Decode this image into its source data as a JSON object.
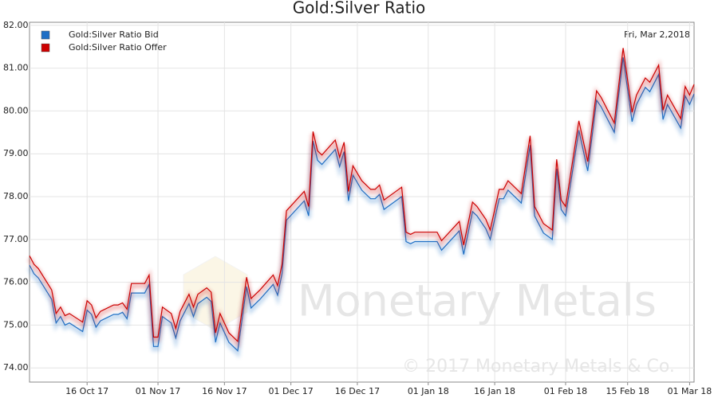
{
  "chart_data": {
    "type": "line",
    "title": "Gold:Silver Ratio",
    "date_label": "Fri, Mar 2,2018",
    "watermark": "Monetary Metals",
    "copyright": "© 2017 Monetary Metals & Co.",
    "x": [
      "2017-10-03",
      "2017-10-04",
      "2017-10-05",
      "2017-10-08",
      "2017-10-09",
      "2017-10-10",
      "2017-10-11",
      "2017-10-12",
      "2017-10-15",
      "2017-10-16",
      "2017-10-17",
      "2017-10-18",
      "2017-10-19",
      "2017-10-22",
      "2017-10-23",
      "2017-10-24",
      "2017-10-25",
      "2017-10-26",
      "2017-10-29",
      "2017-10-30",
      "2017-10-31",
      "2017-11-01",
      "2017-11-02",
      "2017-11-04",
      "2017-11-05",
      "2017-11-06",
      "2017-11-08",
      "2017-11-09",
      "2017-11-10",
      "2017-11-12",
      "2017-11-13",
      "2017-11-14",
      "2017-11-15",
      "2017-11-17",
      "2017-11-19",
      "2017-11-21",
      "2017-11-22",
      "2017-11-24",
      "2017-11-27",
      "2017-11-28",
      "2017-11-29",
      "2017-11-30",
      "2017-12-04",
      "2017-12-05",
      "2017-12-06",
      "2017-12-07",
      "2017-12-08",
      "2017-12-11",
      "2017-12-12",
      "2017-12-13",
      "2017-12-14",
      "2017-12-15",
      "2017-12-17",
      "2017-12-19",
      "2017-12-20",
      "2017-12-21",
      "2017-12-22",
      "2017-12-26",
      "2017-12-27",
      "2017-12-28",
      "2017-12-29",
      "2018-01-03",
      "2018-01-04",
      "2018-01-08",
      "2018-01-09",
      "2018-01-11",
      "2018-01-12",
      "2018-01-14",
      "2018-01-15",
      "2018-01-17",
      "2018-01-18",
      "2018-01-19",
      "2018-01-22",
      "2018-01-24",
      "2018-01-25",
      "2018-01-27",
      "2018-01-29",
      "2018-01-30",
      "2018-01-31",
      "2018-02-01",
      "2018-02-04",
      "2018-02-06",
      "2018-02-08",
      "2018-02-09",
      "2018-02-12",
      "2018-02-14",
      "2018-02-16",
      "2018-02-17",
      "2018-02-19",
      "2018-02-20",
      "2018-02-22",
      "2018-02-23",
      "2018-02-24",
      "2018-02-27",
      "2018-02-28",
      "2018-03-01",
      "2018-03-02"
    ],
    "series": [
      {
        "name": "Gold:Silver Ratio Bid",
        "color": "#1f6fc5",
        "values": [
          76.4,
          76.2,
          76.1,
          75.6,
          75.05,
          75.2,
          75.0,
          75.05,
          74.85,
          75.35,
          75.25,
          74.95,
          75.1,
          75.25,
          75.25,
          75.3,
          75.15,
          75.75,
          75.75,
          75.95,
          74.5,
          74.5,
          75.2,
          75.05,
          74.7,
          75.1,
          75.5,
          75.2,
          75.5,
          75.65,
          75.55,
          74.6,
          75.05,
          74.6,
          74.4,
          75.9,
          75.4,
          75.6,
          75.95,
          75.7,
          76.2,
          77.45,
          77.9,
          77.55,
          79.3,
          78.85,
          78.75,
          79.1,
          78.7,
          79.05,
          77.9,
          78.5,
          78.15,
          77.95,
          77.95,
          78.05,
          77.7,
          78.0,
          76.95,
          76.9,
          76.95,
          76.95,
          76.75,
          77.2,
          76.65,
          77.65,
          77.55,
          77.25,
          77.0,
          77.95,
          77.95,
          78.15,
          77.85,
          79.2,
          77.55,
          77.15,
          77.0,
          78.65,
          77.7,
          77.55,
          79.55,
          78.6,
          80.25,
          80.1,
          79.5,
          81.25,
          79.75,
          80.15,
          80.55,
          80.45,
          80.85,
          79.8,
          80.15,
          79.6,
          80.35,
          80.15,
          80.4
        ]
      },
      {
        "name": "Gold:Silver Ratio Offer",
        "color": "#cc0000",
        "values": [
          76.62,
          76.42,
          76.32,
          75.82,
          75.27,
          75.42,
          75.22,
          75.27,
          75.07,
          75.57,
          75.47,
          75.17,
          75.32,
          75.47,
          75.47,
          75.52,
          75.37,
          75.97,
          75.97,
          76.17,
          74.72,
          74.72,
          75.42,
          75.27,
          74.92,
          75.32,
          75.72,
          75.42,
          75.72,
          75.87,
          75.77,
          74.82,
          75.27,
          74.82,
          74.62,
          76.12,
          75.62,
          75.82,
          76.17,
          75.92,
          76.42,
          77.67,
          78.12,
          77.77,
          79.52,
          79.07,
          78.97,
          79.32,
          78.92,
          79.27,
          78.12,
          78.72,
          78.37,
          78.17,
          78.17,
          78.27,
          77.92,
          78.22,
          77.17,
          77.12,
          77.17,
          77.17,
          76.97,
          77.42,
          76.87,
          77.87,
          77.77,
          77.47,
          77.22,
          78.17,
          78.17,
          78.37,
          78.07,
          79.42,
          77.77,
          77.37,
          77.22,
          78.87,
          77.92,
          77.77,
          79.77,
          78.82,
          80.47,
          80.32,
          79.72,
          81.47,
          79.97,
          80.37,
          80.77,
          80.67,
          81.07,
          80.02,
          80.37,
          79.82,
          80.57,
          80.37,
          80.62
        ]
      }
    ],
    "xlim": [
      "2017-10-03",
      "2018-03-02"
    ],
    "xticks": [
      {
        "value": "2017-10-16",
        "label": "16 Oct 17"
      },
      {
        "value": "2017-11-01",
        "label": "01 Nov 17"
      },
      {
        "value": "2017-11-16",
        "label": "16 Nov 17"
      },
      {
        "value": "2017-12-01",
        "label": "01 Dec 17"
      },
      {
        "value": "2017-12-16",
        "label": "16 Dec 17"
      },
      {
        "value": "2018-01-01",
        "label": "01 Jan 18"
      },
      {
        "value": "2018-01-16",
        "label": "16 Jan 18"
      },
      {
        "value": "2018-02-01",
        "label": "01 Feb 18"
      },
      {
        "value": "2018-02-15",
        "label": "15 Feb 18"
      },
      {
        "value": "2018-03-01",
        "label": "01 Mar 18"
      }
    ],
    "ylim": [
      73.67,
      82.07
    ],
    "yticks": [
      {
        "value": 74,
        "label": "74.00"
      },
      {
        "value": 75,
        "label": "75.00"
      },
      {
        "value": 76,
        "label": "76.00"
      },
      {
        "value": 77,
        "label": "77.00"
      },
      {
        "value": 78,
        "label": "78.00"
      },
      {
        "value": 79,
        "label": "79.00"
      },
      {
        "value": 80,
        "label": "80.00"
      },
      {
        "value": 81,
        "label": "81.00"
      },
      {
        "value": 82,
        "label": "82.00"
      }
    ],
    "grid": true,
    "legend": "top-left"
  }
}
